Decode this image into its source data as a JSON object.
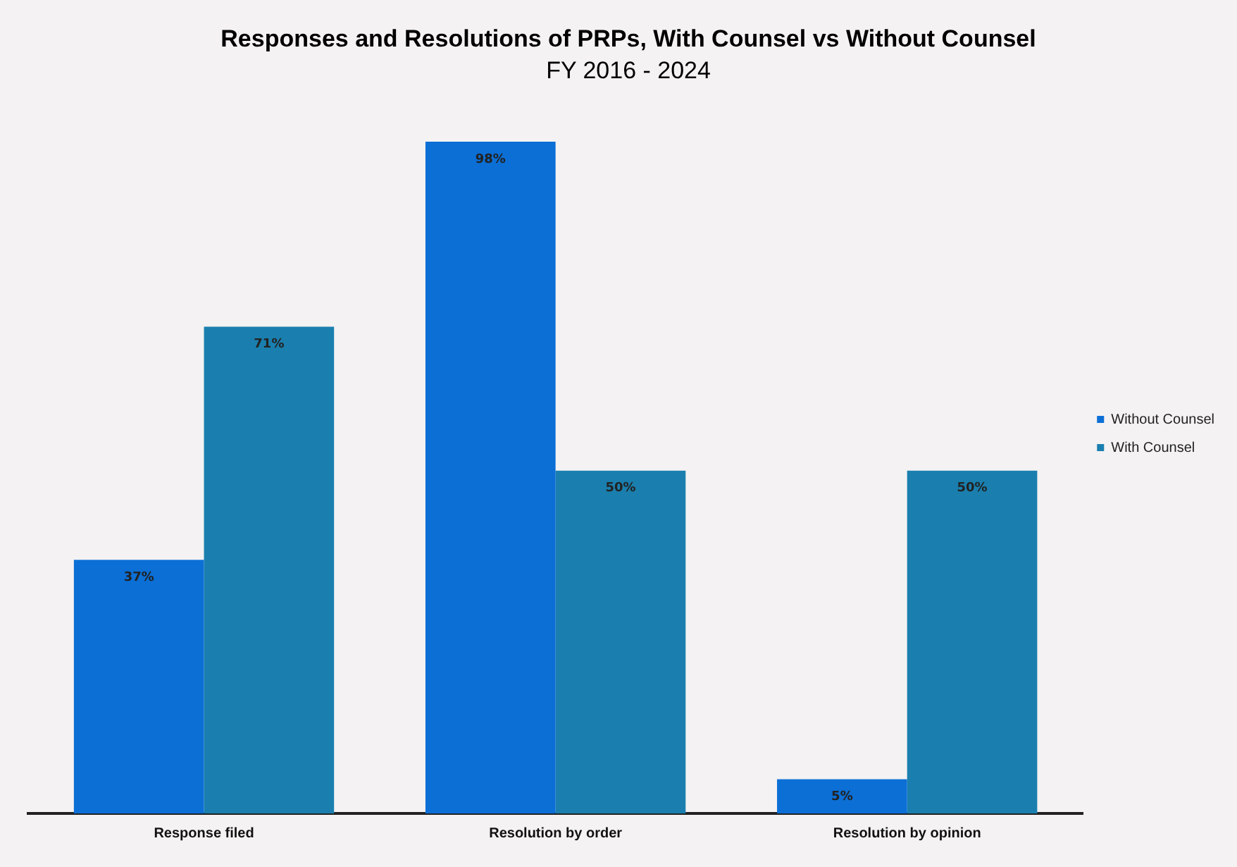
{
  "chart_data": {
    "type": "bar",
    "title": "Responses and Resolutions of PRPs, With Counsel vs Without Counsel",
    "subtitle": "FY 2016 - 2024",
    "categories": [
      "Response filed",
      "Resolution by order",
      "Resolution by opinion"
    ],
    "series": [
      {
        "name": "Without Counsel",
        "color": "#0b6fd6",
        "values": [
          37,
          98,
          5
        ],
        "value_labels": [
          "37%",
          "98%",
          "5%"
        ]
      },
      {
        "name": "With Counsel",
        "color": "#1a7fae",
        "values": [
          71,
          50,
          50
        ],
        "value_labels": [
          "71%",
          "50%",
          "50%"
        ]
      }
    ],
    "legend": "right",
    "grid": false,
    "tick_labels": "x"
  }
}
